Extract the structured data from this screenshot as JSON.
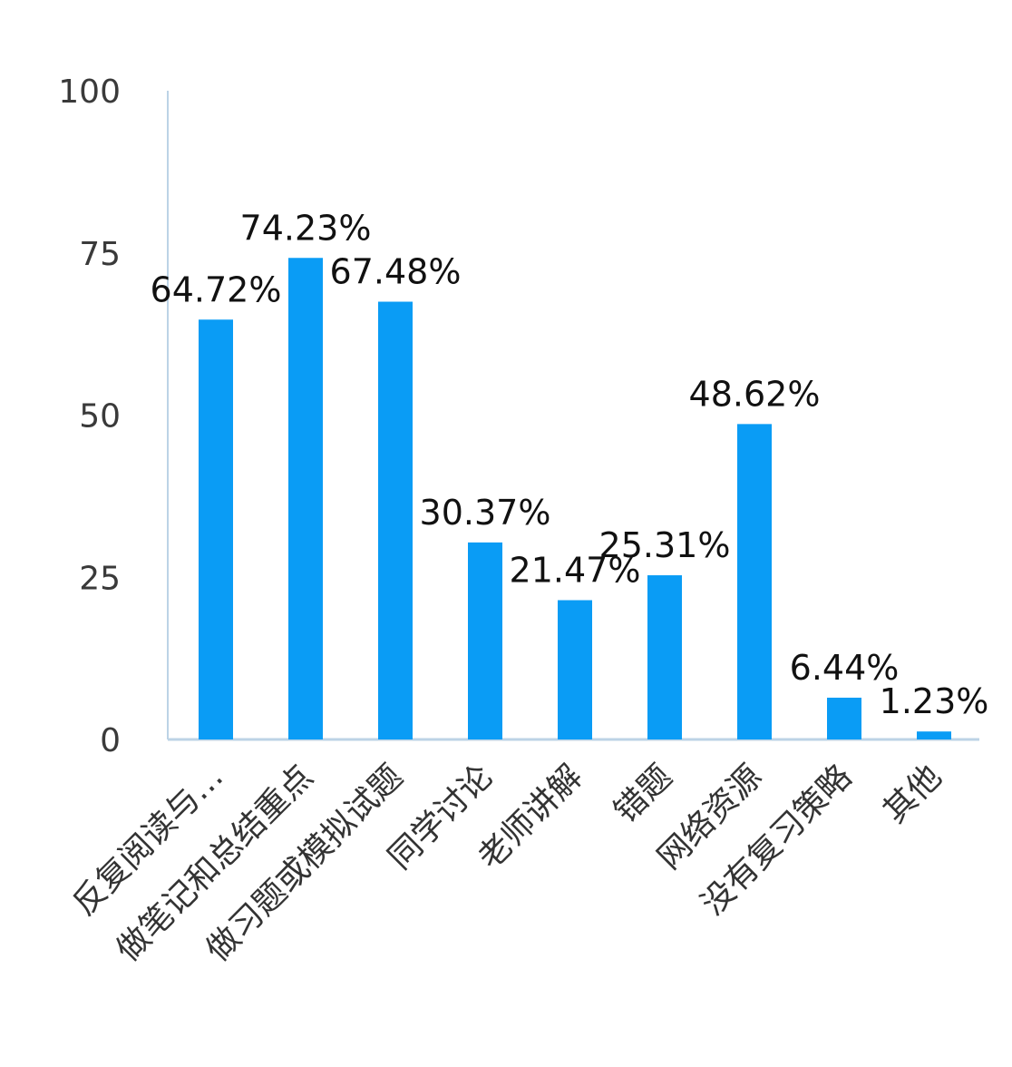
{
  "chart_data": {
    "type": "bar",
    "categories": [
      "反复阅读与…",
      "做笔记和总结重点",
      "做习题或模拟试题",
      "同学讨论",
      "老师讲解",
      "错题",
      "网络资源",
      "没有复习策略",
      "其他"
    ],
    "values": [
      64.72,
      74.23,
      67.48,
      30.37,
      21.47,
      25.31,
      48.62,
      6.44,
      1.23
    ],
    "data_labels": [
      "64.72%",
      "74.23%",
      "67.48%",
      "30.37%",
      "21.47%",
      "25.31%",
      "48.62%",
      "6.44%",
      "1.23%"
    ],
    "y_ticks": [
      "0",
      "25",
      "50",
      "75",
      "100"
    ],
    "ylim": [
      0,
      100
    ],
    "grid": false,
    "legend": "none",
    "bar_color": "#0a9cf5",
    "axis_color": "#bcd3e6"
  }
}
